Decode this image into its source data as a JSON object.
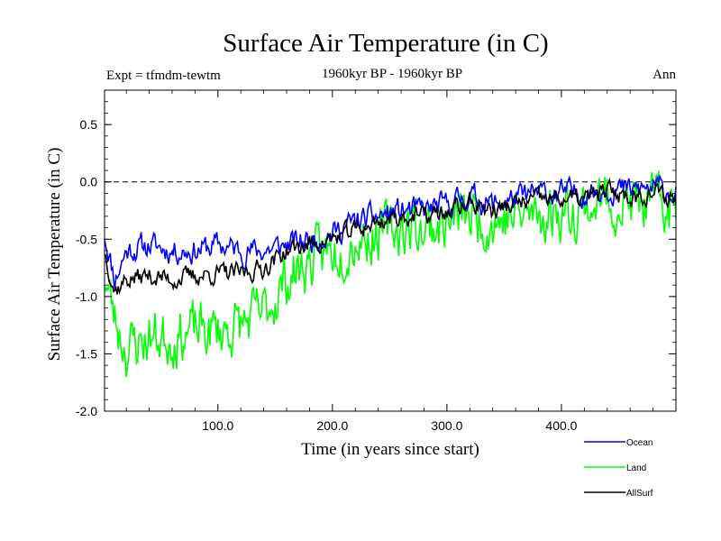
{
  "chart_data": {
    "type": "line",
    "title": "Surface Air Temperature (in C)",
    "subtitle": "1960kyr BP - 1960kyr BP",
    "left_label": "Expt = tfmdm-tewtm",
    "right_label": "Ann",
    "xlabel": "Time (in years since start)",
    "ylabel": "Surface Air Temperature (in C)",
    "xlim": [
      1,
      500
    ],
    "ylim": [
      -2.0,
      0.8
    ],
    "xticks": [
      100,
      200,
      300,
      400
    ],
    "xtick_labels": [
      "100.0",
      "200.0",
      "300.0",
      "400.0"
    ],
    "yticks": [
      0.5,
      0.0,
      -0.5,
      -1.0,
      -1.5,
      -2.0
    ],
    "ytick_labels": [
      "0.5",
      "0.0",
      "-0.5",
      "-1.0",
      "-1.5",
      "-2.0"
    ],
    "reference_line": 0.0,
    "legend_position": "bottom-right",
    "series": [
      {
        "name": "Ocean",
        "color": "#0000ff",
        "seed": 11,
        "noise": 0.09,
        "anchors": [
          [
            1,
            -0.45
          ],
          [
            10,
            -0.85
          ],
          [
            20,
            -0.6
          ],
          [
            40,
            -0.55
          ],
          [
            60,
            -0.6
          ],
          [
            80,
            -0.6
          ],
          [
            100,
            -0.55
          ],
          [
            120,
            -0.6
          ],
          [
            140,
            -0.6
          ],
          [
            160,
            -0.55
          ],
          [
            180,
            -0.5
          ],
          [
            200,
            -0.45
          ],
          [
            220,
            -0.35
          ],
          [
            240,
            -0.3
          ],
          [
            260,
            -0.25
          ],
          [
            280,
            -0.25
          ],
          [
            300,
            -0.2
          ],
          [
            320,
            -0.12
          ],
          [
            340,
            -0.2
          ],
          [
            360,
            -0.15
          ],
          [
            380,
            -0.1
          ],
          [
            400,
            -0.1
          ],
          [
            420,
            -0.1
          ],
          [
            440,
            -0.05
          ],
          [
            460,
            -0.08
          ],
          [
            480,
            -0.05
          ],
          [
            500,
            -0.1
          ]
        ]
      },
      {
        "name": "Land",
        "color": "#00ff00",
        "seed": 23,
        "noise": 0.2,
        "anchors": [
          [
            1,
            -0.8
          ],
          [
            10,
            -1.2
          ],
          [
            20,
            -1.45
          ],
          [
            40,
            -1.35
          ],
          [
            60,
            -1.35
          ],
          [
            80,
            -1.3
          ],
          [
            100,
            -1.3
          ],
          [
            120,
            -1.25
          ],
          [
            140,
            -1.15
          ],
          [
            160,
            -0.85
          ],
          [
            180,
            -0.7
          ],
          [
            200,
            -0.6
          ],
          [
            220,
            -0.5
          ],
          [
            240,
            -0.45
          ],
          [
            260,
            -0.4
          ],
          [
            280,
            -0.4
          ],
          [
            300,
            -0.35
          ],
          [
            320,
            -0.3
          ],
          [
            340,
            -0.35
          ],
          [
            360,
            -0.3
          ],
          [
            380,
            -0.3
          ],
          [
            400,
            -0.25
          ],
          [
            420,
            -0.22
          ],
          [
            440,
            -0.15
          ],
          [
            460,
            -0.2
          ],
          [
            480,
            -0.2
          ],
          [
            500,
            -0.25
          ]
        ]
      },
      {
        "name": "AllSurf",
        "color": "#000000",
        "seed": 37,
        "noise": 0.07,
        "anchors": [
          [
            1,
            -0.6
          ],
          [
            10,
            -0.95
          ],
          [
            20,
            -0.85
          ],
          [
            40,
            -0.82
          ],
          [
            60,
            -0.85
          ],
          [
            80,
            -0.82
          ],
          [
            100,
            -0.8
          ],
          [
            120,
            -0.8
          ],
          [
            140,
            -0.75
          ],
          [
            160,
            -0.6
          ],
          [
            180,
            -0.55
          ],
          [
            200,
            -0.5
          ],
          [
            220,
            -0.42
          ],
          [
            240,
            -0.35
          ],
          [
            260,
            -0.3
          ],
          [
            280,
            -0.3
          ],
          [
            300,
            -0.27
          ],
          [
            320,
            -0.18
          ],
          [
            340,
            -0.25
          ],
          [
            360,
            -0.2
          ],
          [
            380,
            -0.15
          ],
          [
            400,
            -0.15
          ],
          [
            420,
            -0.15
          ],
          [
            440,
            -0.08
          ],
          [
            460,
            -0.12
          ],
          [
            480,
            -0.1
          ],
          [
            500,
            -0.15
          ]
        ]
      }
    ]
  }
}
